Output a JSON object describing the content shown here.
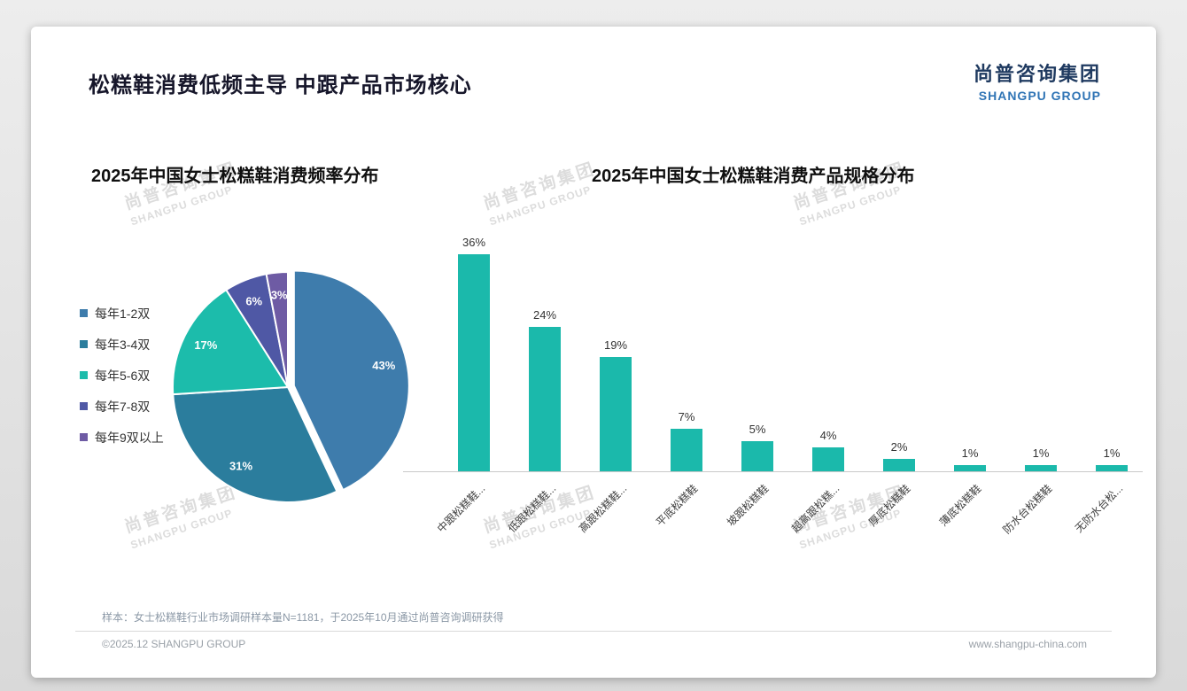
{
  "header": {
    "title": "松糕鞋消费低频主导 中跟产品市场核心",
    "logo_cn": "尚普咨询集团",
    "logo_en": "SHANGPU GROUP"
  },
  "watermark": {
    "cn": "尚普咨询集团",
    "en": "SHANGPU GROUP"
  },
  "footer": {
    "note": "样本：女士松糕鞋行业市场调研样本量N=1181，于2025年10月通过尚普咨询调研获得",
    "copyright": "©2025.12 SHANGPU GROUP",
    "website": "www.shangpu-china.com"
  },
  "chart_data": [
    {
      "type": "pie",
      "title": "2025年中国女士松糕鞋消费频率分布",
      "labels": [
        "每年1-2双",
        "每年3-4双",
        "每年5-6双",
        "每年7-8双",
        "每年9双以上"
      ],
      "values": [
        43,
        31,
        17,
        6,
        3
      ],
      "data_labels": [
        "43%",
        "31%",
        "17%",
        "6%",
        "3%"
      ],
      "colors": [
        "#3e7cac",
        "#2b7d9d",
        "#1cbcab",
        "#4f58a5",
        "#6e5ba4"
      ],
      "legend_position": "left",
      "start_angle": "top",
      "direction": "clockwise"
    },
    {
      "type": "bar",
      "title": "2025年中国女士松糕鞋消费产品规格分布",
      "categories": [
        "中跟松糕鞋...",
        "低跟松糕鞋...",
        "高跟松糕鞋...",
        "平底松糕鞋",
        "坡跟松糕鞋",
        "超高跟松糕...",
        "厚底松糕鞋",
        "薄底松糕鞋",
        "防水台松糕鞋",
        "无防水台松..."
      ],
      "values": [
        36,
        24,
        19,
        7,
        5,
        4,
        2,
        1,
        1,
        1
      ],
      "data_label_suffix": "%",
      "bar_color": "#1bb9ab",
      "ylim": [
        0,
        40
      ],
      "grid": false
    }
  ]
}
